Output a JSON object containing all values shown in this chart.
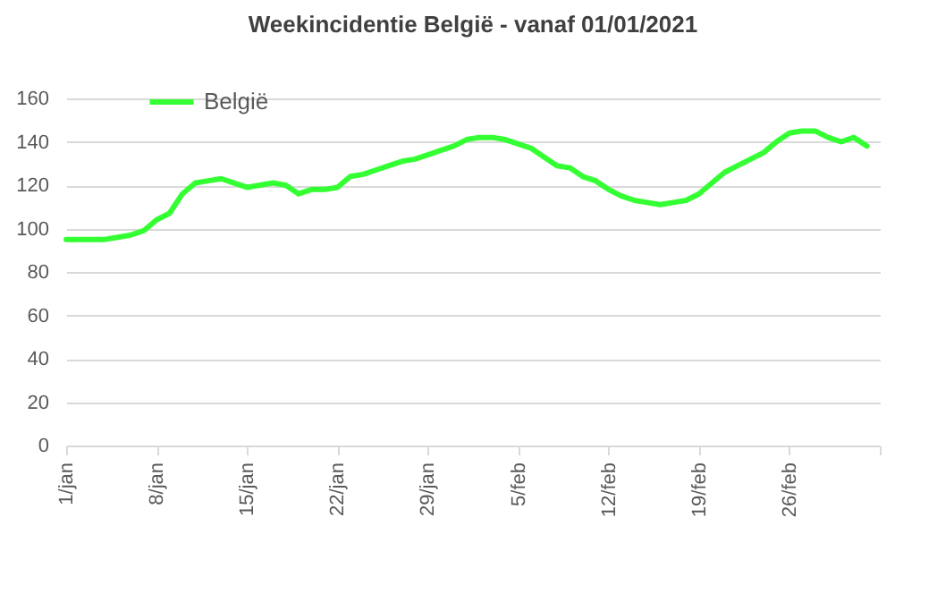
{
  "chart_data": {
    "type": "line",
    "title": "Weekincidentie  België - vanaf 01/01/2021",
    "x": [
      "2021-01-01",
      "2021-01-02",
      "2021-01-03",
      "2021-01-04",
      "2021-01-05",
      "2021-01-06",
      "2021-01-07",
      "2021-01-08",
      "2021-01-09",
      "2021-01-10",
      "2021-01-11",
      "2021-01-12",
      "2021-01-13",
      "2021-01-14",
      "2021-01-15",
      "2021-01-16",
      "2021-01-17",
      "2021-01-18",
      "2021-01-19",
      "2021-01-20",
      "2021-01-21",
      "2021-01-22",
      "2021-01-23",
      "2021-01-24",
      "2021-01-25",
      "2021-01-26",
      "2021-01-27",
      "2021-01-28",
      "2021-01-29",
      "2021-01-30",
      "2021-01-31",
      "2021-02-01",
      "2021-02-02",
      "2021-02-03",
      "2021-02-04",
      "2021-02-05",
      "2021-02-06",
      "2021-02-07",
      "2021-02-08",
      "2021-02-09",
      "2021-02-10",
      "2021-02-11",
      "2021-02-12",
      "2021-02-13",
      "2021-02-14",
      "2021-02-15",
      "2021-02-16",
      "2021-02-17",
      "2021-02-18",
      "2021-02-19",
      "2021-02-20",
      "2021-02-21",
      "2021-02-22",
      "2021-02-23",
      "2021-02-24",
      "2021-02-25",
      "2021-02-26",
      "2021-02-27",
      "2021-02-28",
      "2021-03-01",
      "2021-03-02",
      "2021-03-03",
      "2021-03-04"
    ],
    "series": [
      {
        "name": "België",
        "color": "#33ff33",
        "values": [
          95,
          95,
          95,
          95,
          96,
          97,
          99,
          104,
          107,
          116,
          121,
          122,
          123,
          121,
          119,
          120,
          121,
          120,
          116,
          118,
          118,
          119,
          124,
          125,
          127,
          129,
          131,
          132,
          134,
          136,
          138,
          141,
          142,
          142,
          141,
          139,
          137,
          133,
          129,
          128,
          124,
          122,
          118,
          115,
          113,
          112,
          111,
          112,
          113,
          116,
          121,
          126,
          129,
          132,
          135,
          140,
          144,
          145,
          145,
          142,
          140,
          142,
          138
        ]
      }
    ],
    "xlim": [
      "2021-01-01",
      "2021-03-05"
    ],
    "xticks": [
      {
        "value": "2021-01-01",
        "label": "1/jan"
      },
      {
        "value": "2021-01-08",
        "label": "8/jan"
      },
      {
        "value": "2021-01-15",
        "label": "15/jan"
      },
      {
        "value": "2021-01-22",
        "label": "22/jan"
      },
      {
        "value": "2021-01-29",
        "label": "29/jan"
      },
      {
        "value": "2021-02-05",
        "label": "5/feb"
      },
      {
        "value": "2021-02-12",
        "label": "12/feb"
      },
      {
        "value": "2021-02-19",
        "label": "19/feb"
      },
      {
        "value": "2021-02-26",
        "label": "26/feb"
      },
      {
        "value": "2021-03-05",
        "label": null
      }
    ],
    "ylim": [
      0,
      160
    ],
    "yticks": [
      0,
      20,
      40,
      60,
      80,
      100,
      120,
      140,
      160
    ],
    "grid": "y",
    "legend": "top left",
    "marker": "none",
    "line_style": "solid"
  }
}
